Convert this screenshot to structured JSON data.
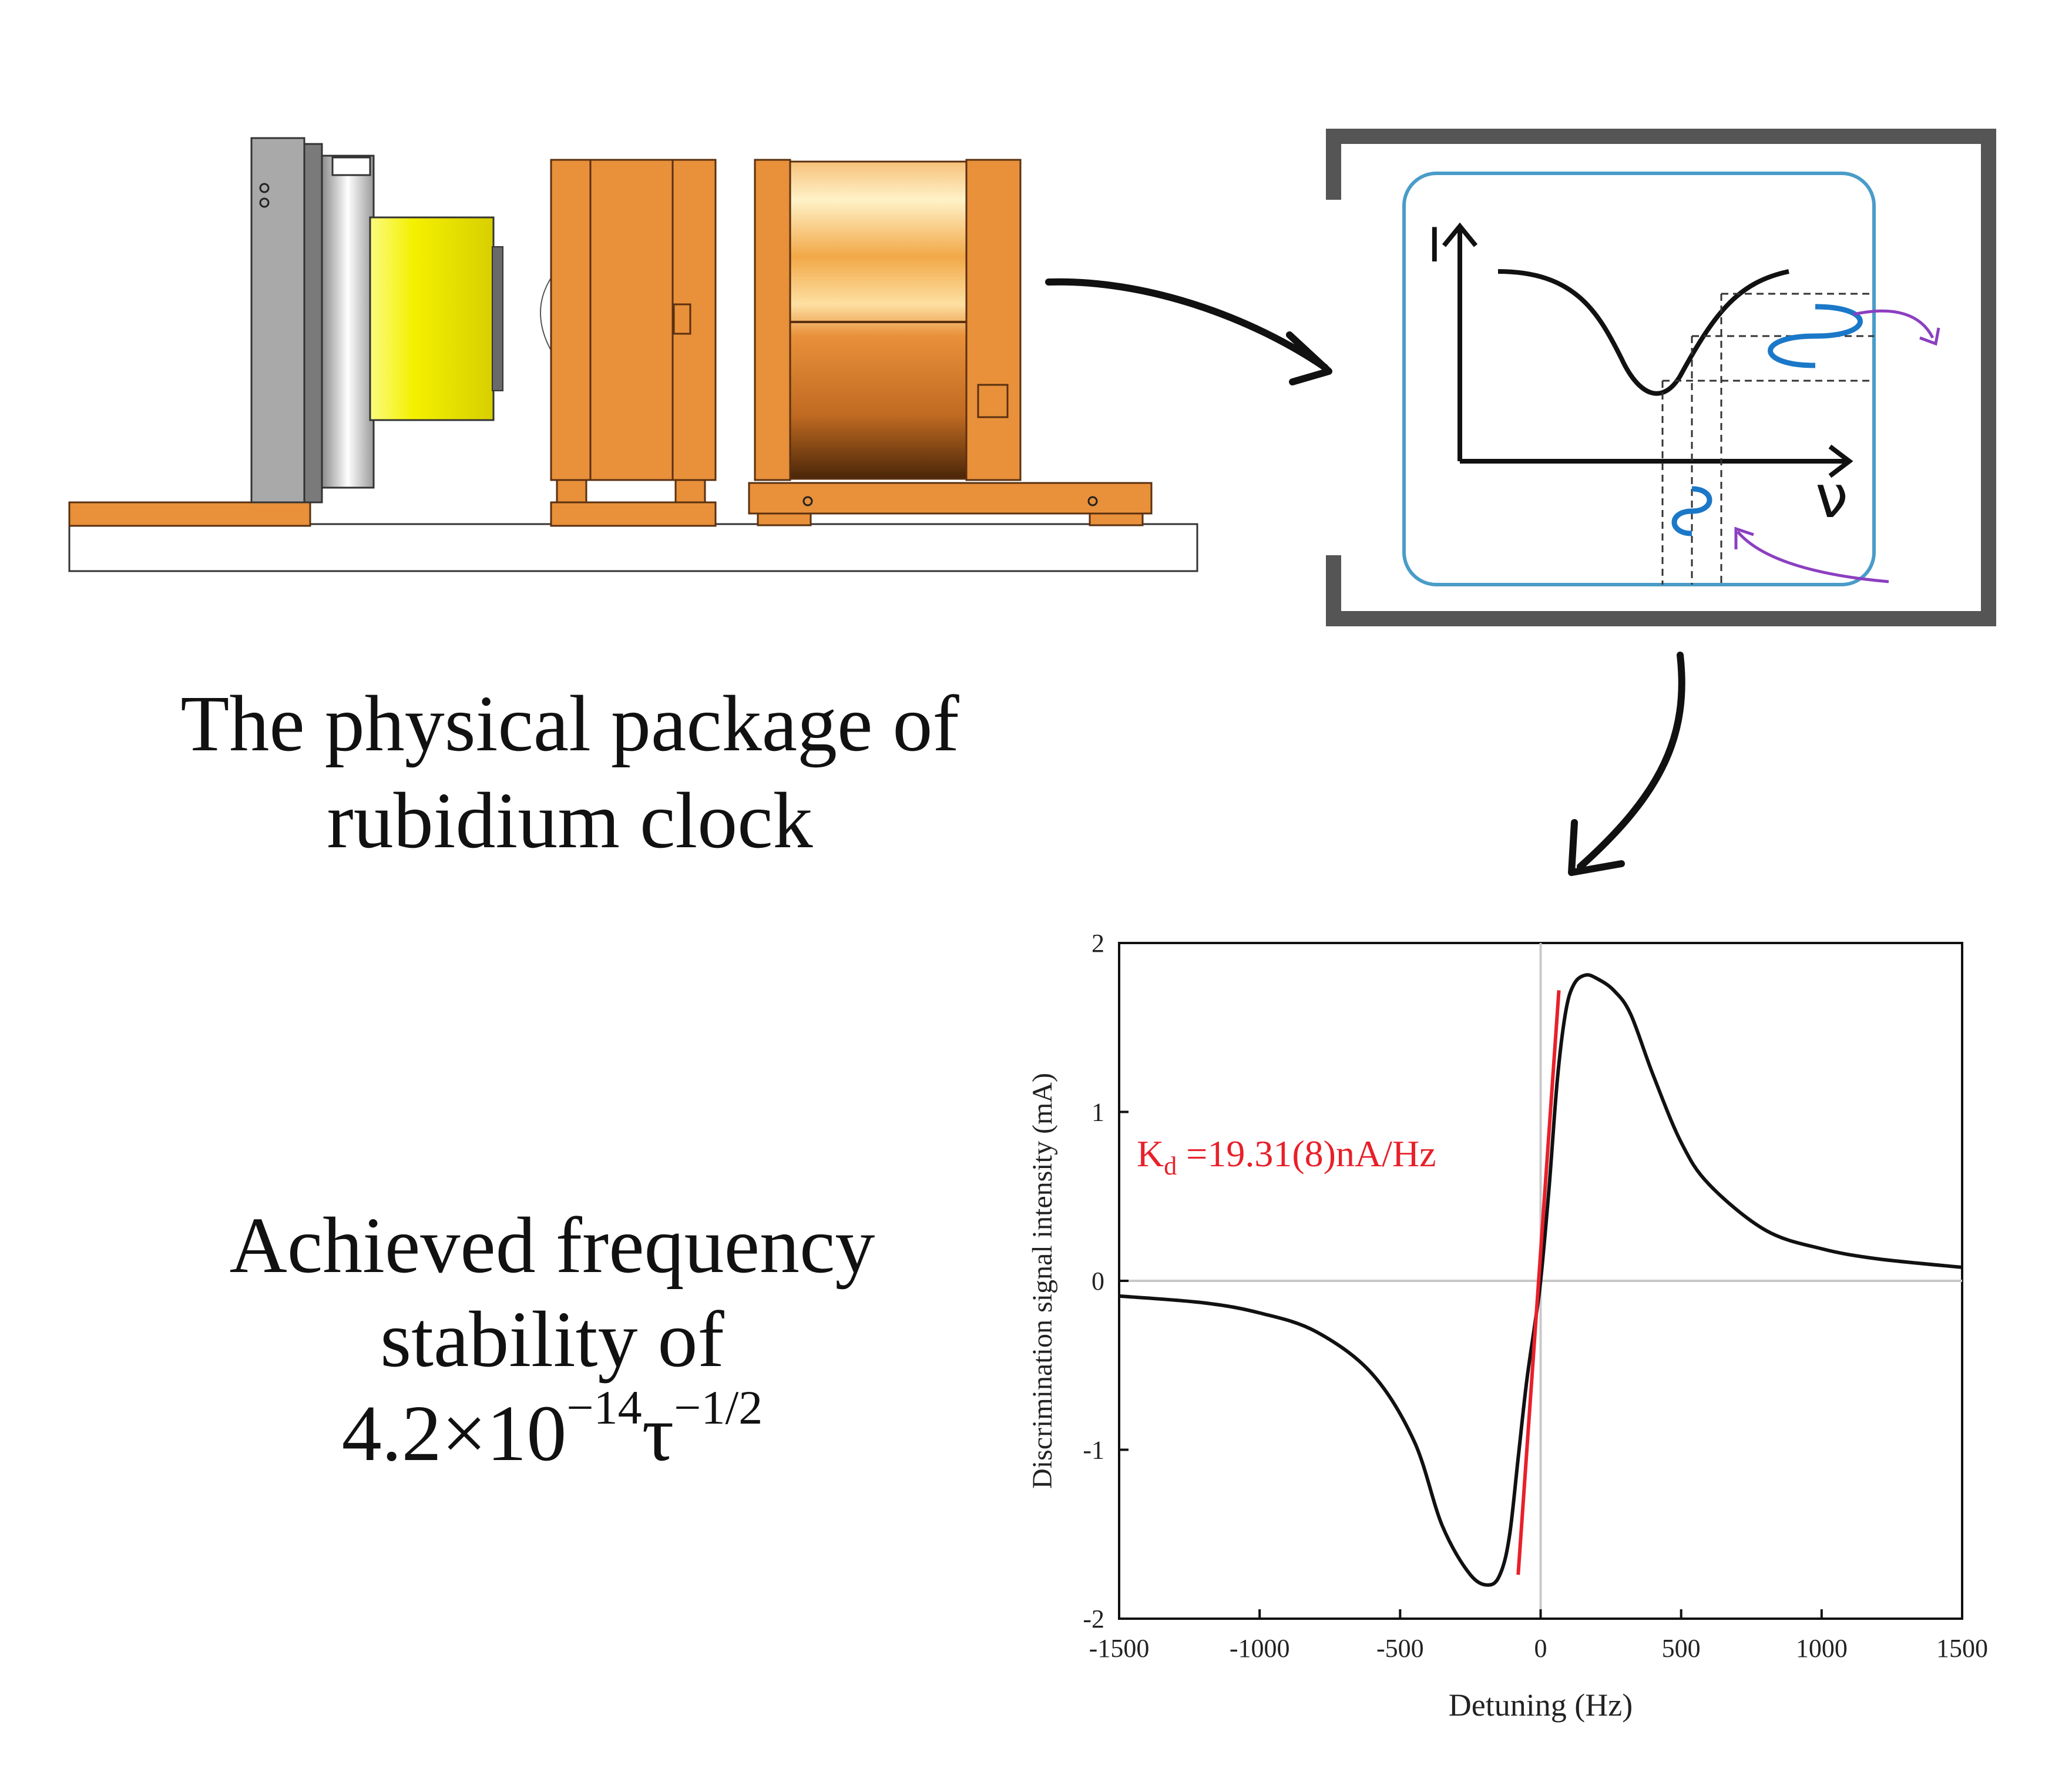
{
  "package_caption": {
    "line1": "The physical package of",
    "line2": "rubidium clock"
  },
  "stability_caption": {
    "line1": "Achieved frequency",
    "line2": "stability of",
    "mantissa": "4.2×10",
    "exp1": "−14",
    "tau": "τ",
    "exp2": "−1/2"
  },
  "schematic": {
    "y_label": "I",
    "x_label": "ν"
  },
  "colors": {
    "orange": "#e8903a",
    "yellow": "#f2ee00",
    "wave_blue": "#1b78c8",
    "arrow_purple": "#8c3fc0",
    "frame_gray": "#555555",
    "cell_blue": "#4a9cc8",
    "fit_red": "#e8202a"
  },
  "chart_data": {
    "type": "line",
    "xlabel": "Detuning (Hz)",
    "ylabel": "Discrimination signal intensity (mA)",
    "xlim": [
      -1500,
      1500
    ],
    "ylim": [
      -2,
      2
    ],
    "xticks": [
      -1500,
      -1000,
      -500,
      0,
      500,
      1000,
      1500
    ],
    "yticks": [
      -2,
      -1,
      0,
      1,
      2
    ],
    "zero_lines": true,
    "series": [
      {
        "x": [
          -1500,
          -1200,
          -1000,
          -800,
          -600,
          -450,
          -350,
          -250,
          -180,
          -140,
          -110,
          -80,
          -50,
          -20,
          0,
          30,
          60,
          90,
          120,
          160,
          200,
          260,
          320,
          400,
          500,
          600,
          800,
          1000,
          1200,
          1500
        ],
        "values": [
          -0.09,
          -0.13,
          -0.19,
          -0.3,
          -0.55,
          -0.95,
          -1.45,
          -1.74,
          -1.8,
          -1.72,
          -1.5,
          -1.05,
          -0.6,
          -0.25,
          0.0,
          0.55,
          1.2,
          1.6,
          1.76,
          1.81,
          1.79,
          1.72,
          1.58,
          1.22,
          0.82,
          0.57,
          0.3,
          0.19,
          0.13,
          0.08
        ]
      }
    ],
    "fit_line": {
      "x": [
        -80,
        65
      ],
      "values": [
        -1.74,
        1.72
      ],
      "label_main": "K",
      "label_sub": "d",
      "label_rest": " =19.31(8)nA/Hz"
    }
  }
}
